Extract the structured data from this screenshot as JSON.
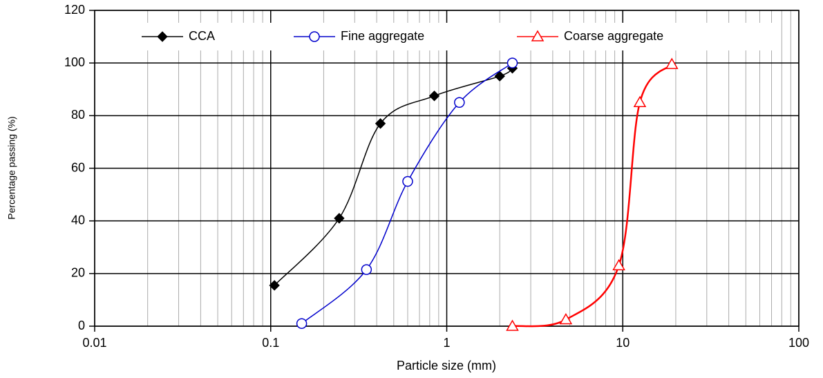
{
  "chart_data": {
    "type": "line",
    "x_label": "Particle size (mm)",
    "y_label": "Percentage passing (%)",
    "xscale": "log",
    "xlim": [
      0.01,
      100
    ],
    "xticks": [
      0.01,
      0.1,
      1,
      10,
      100
    ],
    "ylim": [
      0,
      120
    ],
    "yticks": [
      0,
      20,
      40,
      60,
      80,
      100,
      120
    ],
    "grid": true,
    "legend": "top",
    "series": [
      {
        "name": "CCA",
        "color": "#000000",
        "marker": "diamond",
        "x": [
          0.105,
          0.245,
          0.42,
          0.85,
          2.0,
          2.36
        ],
        "values": [
          15.5,
          41,
          77,
          87.5,
          95,
          98
        ]
      },
      {
        "name": "Fine aggregate",
        "color": "#0000cc",
        "marker": "circle",
        "x": [
          0.15,
          0.35,
          0.6,
          1.18,
          2.36
        ],
        "values": [
          1,
          21.5,
          55,
          85,
          100
        ]
      },
      {
        "name": "Coarse aggregate",
        "color": "#ff0000",
        "marker": "triangle",
        "x": [
          2.36,
          4.75,
          9.5,
          12.5,
          19
        ],
        "values": [
          0,
          2.5,
          23,
          85,
          99.5
        ]
      }
    ]
  }
}
